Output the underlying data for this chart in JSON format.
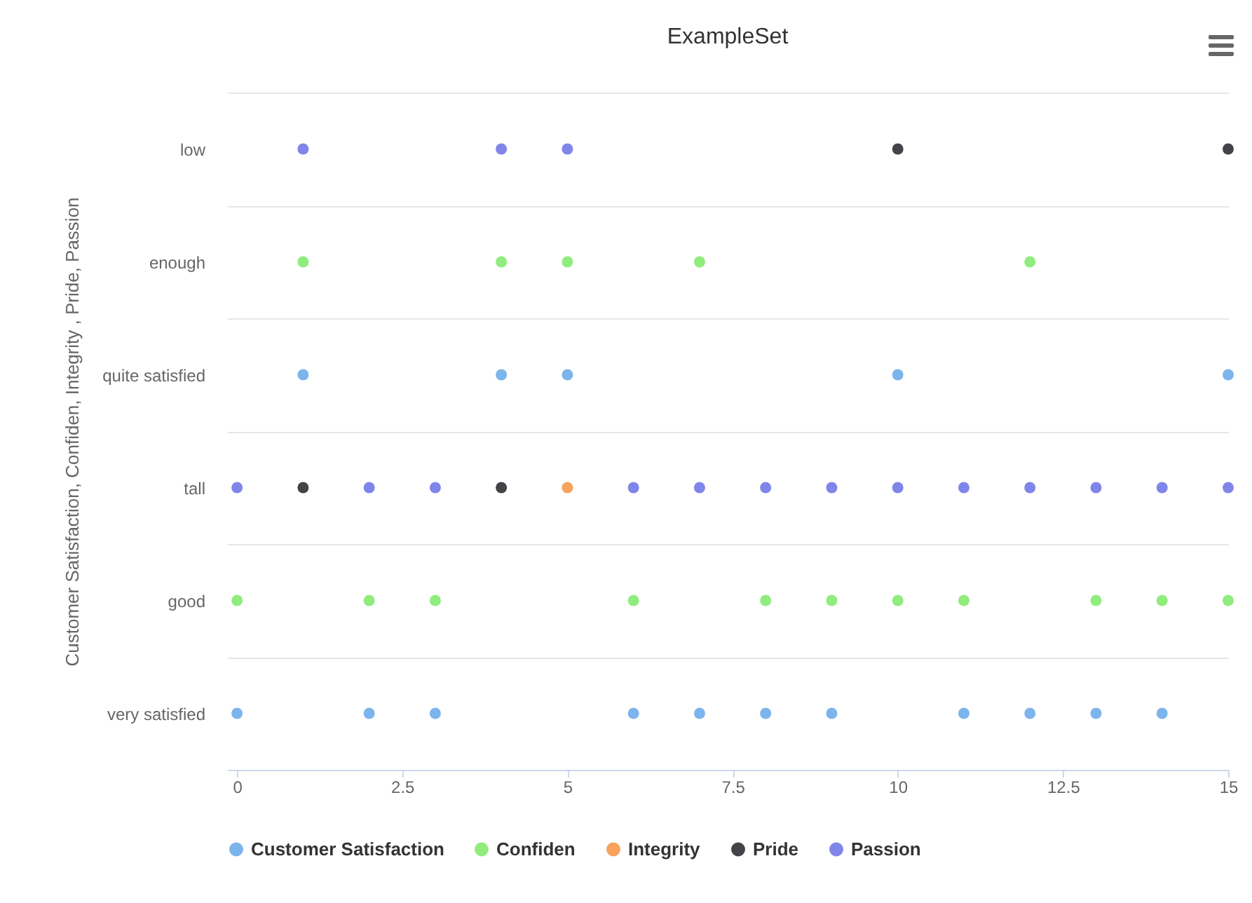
{
  "chart_data": {
    "type": "scatter",
    "orientation": "horizontal",
    "title": "ExampleSet",
    "ylabel": "Customer Satisfaction, Confiden, Integrity , Pride, Passion",
    "categories": [
      "low",
      "enough",
      "quite satisfied",
      "tall",
      "good",
      "very satisfied"
    ],
    "xlim": [
      -0.15,
      15
    ],
    "xticks": [
      0,
      2.5,
      5,
      7.5,
      10,
      12.5,
      15
    ],
    "grid": "y",
    "legend": "bottom",
    "marker": "circle",
    "series": [
      {
        "name": "Customer Satisfaction",
        "color": "#7cb5ec",
        "x": [
          "very satisfied",
          "quite satisfied",
          "very satisfied",
          "very satisfied",
          "quite satisfied",
          "quite satisfied",
          "very satisfied",
          "very satisfied",
          "very satisfied",
          "very satisfied",
          "quite satisfied",
          "very satisfied",
          "very satisfied",
          "very satisfied",
          "very satisfied",
          "quite satisfied"
        ],
        "values": [
          0,
          1,
          2,
          3,
          4,
          5,
          6,
          7,
          8,
          9,
          10,
          11,
          12,
          13,
          14,
          15
        ]
      },
      {
        "name": "Confiden",
        "color": "#90ed7d",
        "x": [
          "good",
          "enough",
          "good",
          "good",
          "enough",
          "enough",
          "good",
          "enough",
          "good",
          "good",
          "good",
          "good",
          "enough",
          "good",
          "good",
          "good"
        ],
        "values": [
          0,
          1,
          2,
          3,
          4,
          5,
          6,
          7,
          8,
          9,
          10,
          11,
          12,
          13,
          14,
          15
        ]
      },
      {
        "name": "Integrity",
        "color": "#f7a35c",
        "x": [
          "tall"
        ],
        "values": [
          5
        ]
      },
      {
        "name": "Pride",
        "color": "#434348",
        "x": [
          "tall",
          "tall",
          "low",
          "low"
        ],
        "values": [
          1,
          4,
          10,
          15
        ]
      },
      {
        "name": "Passion",
        "color": "#8085e9",
        "x": [
          "tall",
          "low",
          "tall",
          "tall",
          "low",
          "low",
          "tall",
          "tall",
          "tall",
          "tall",
          "tall",
          "tall",
          "tall",
          "tall",
          "tall",
          "tall"
        ],
        "values": [
          0,
          1,
          2,
          3,
          4,
          5,
          6,
          7,
          8,
          9,
          10,
          11,
          12,
          13,
          14,
          15
        ]
      }
    ]
  }
}
